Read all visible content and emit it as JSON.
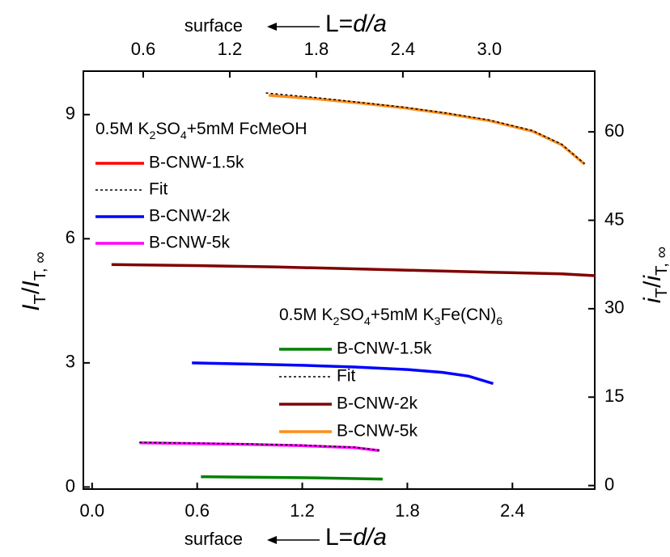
{
  "chart_data": {
    "type": "line",
    "xlabel": {
      "note": "surface",
      "parts": [
        {
          "text": "L=",
          "style": "normal"
        },
        {
          "text": "d/a",
          "style": "italic"
        }
      ]
    },
    "x2label": {
      "note": "surface",
      "parts": [
        {
          "text": "L=",
          "style": "normal"
        },
        {
          "text": "d/a",
          "style": "italic"
        }
      ]
    },
    "ylabel": [
      {
        "text": "I",
        "style": "italic"
      },
      {
        "text": "T",
        "style": "sub"
      },
      {
        "text": "/",
        "style": "normal"
      },
      {
        "text": "I",
        "style": "italic"
      },
      {
        "text": "T, ∞",
        "style": "sub"
      }
    ],
    "y2label": [
      {
        "text": "i",
        "style": "italic"
      },
      {
        "text": "T",
        "style": "sub"
      },
      {
        "text": "/",
        "style": "normal"
      },
      {
        "text": "i",
        "style": "italic"
      },
      {
        "text": "T, ∞",
        "style": "sub"
      }
    ],
    "xlim": [
      -0.05,
      2.87
    ],
    "xticks": [
      {
        "value": 0,
        "label": "0.0"
      },
      0.6,
      1.2,
      1.8,
      2.4
    ],
    "x2lim": [
      0.185,
      3.73
    ],
    "x2ticks": [
      0.6,
      1.2,
      1.8,
      2.4,
      {
        "value": 3,
        "label": "3.0"
      }
    ],
    "ylim": [
      -0.05,
      10.05
    ],
    "yticks": [
      0,
      3,
      6,
      9
    ],
    "y2lim": [
      -0.6,
      70.3
    ],
    "y2ticks": [
      0,
      15,
      30,
      45,
      60
    ],
    "legend_titles": [
      [
        {
          "text": "0.5M K",
          "style": "normal"
        },
        {
          "text": "2",
          "style": "sub"
        },
        {
          "text": "SO",
          "style": "normal"
        },
        {
          "text": "4",
          "style": "sub"
        },
        {
          "text": "+5mM FcMeOH",
          "style": "normal"
        }
      ],
      [
        {
          "text": "0.5M K",
          "style": "normal"
        },
        {
          "text": "2",
          "style": "sub"
        },
        {
          "text": "SO",
          "style": "normal"
        },
        {
          "text": "4",
          "style": "sub"
        },
        {
          "text": "+5mM K",
          "style": "normal"
        },
        {
          "text": "3",
          "style": "sub"
        },
        {
          "text": "Fe(CN)",
          "style": "normal"
        },
        {
          "text": "6",
          "style": "sub"
        }
      ]
    ],
    "series": [
      {
        "name": "B-CNW-1.5k",
        "color": "#ff0000",
        "dash": "solid",
        "axis": "y",
        "x": [],
        "values": []
      },
      {
        "name": "Fit",
        "color": "#000000",
        "dash": "dotted",
        "axis": "y2",
        "x": [
          1.45,
          1.8,
          2.1,
          2.4,
          2.7,
          3.0,
          3.3,
          3.5,
          3.66
        ],
        "values": [
          66.6,
          65.8,
          65.0,
          64.2,
          63.2,
          62.0,
          60.2,
          57.9,
          54.6
        ]
      },
      {
        "name": "B-CNW-2k",
        "color": "#0000ff",
        "dash": "solid",
        "axis": "y",
        "x": [
          0.57,
          0.9,
          1.2,
          1.5,
          1.8,
          2.0,
          2.15,
          2.29
        ],
        "values": [
          3.0,
          2.97,
          2.94,
          2.9,
          2.84,
          2.77,
          2.68,
          2.5
        ]
      },
      {
        "name": "B-CNW-5k",
        "color": "#ff00ff",
        "dash": "solid",
        "axis": "y",
        "x": [
          0.27,
          0.6,
          0.9,
          1.2,
          1.5,
          1.64
        ],
        "values": [
          1.07,
          1.05,
          1.03,
          1.0,
          0.95,
          0.88
        ]
      },
      {
        "name": "B-CNW-1.5k",
        "color": "#008000",
        "dash": "solid",
        "axis": "y2",
        "x": [
          1.0,
          1.4,
          1.8,
          2.26
        ],
        "values": [
          1.5,
          1.4,
          1.3,
          1.1
        ]
      },
      {
        "name": "Fit",
        "color": "#000000",
        "dash": "dotted",
        "axis": "y",
        "x": [
          0.27,
          0.6,
          0.9,
          1.2,
          1.5,
          1.64
        ],
        "values": [
          1.08,
          1.06,
          1.04,
          1.01,
          0.96,
          0.89
        ]
      },
      {
        "name": "B-CNW-2k",
        "color": "#800000",
        "dash": "solid",
        "axis": "y2",
        "x": [
          0.38,
          1.0,
          1.5,
          2.0,
          2.5,
          3.0,
          3.5,
          3.73
        ],
        "values": [
          37.5,
          37.3,
          37.1,
          36.8,
          36.5,
          36.2,
          35.9,
          35.6
        ]
      },
      {
        "name": "B-CNW-5k",
        "color": "#ff8c1a",
        "dash": "solid",
        "axis": "y2",
        "x": [
          1.47,
          1.8,
          2.1,
          2.4,
          2.7,
          3.0,
          3.3,
          3.5,
          3.66
        ],
        "values": [
          66.2,
          65.6,
          64.9,
          64.1,
          63.1,
          61.9,
          60.1,
          57.8,
          54.5
        ]
      }
    ]
  }
}
